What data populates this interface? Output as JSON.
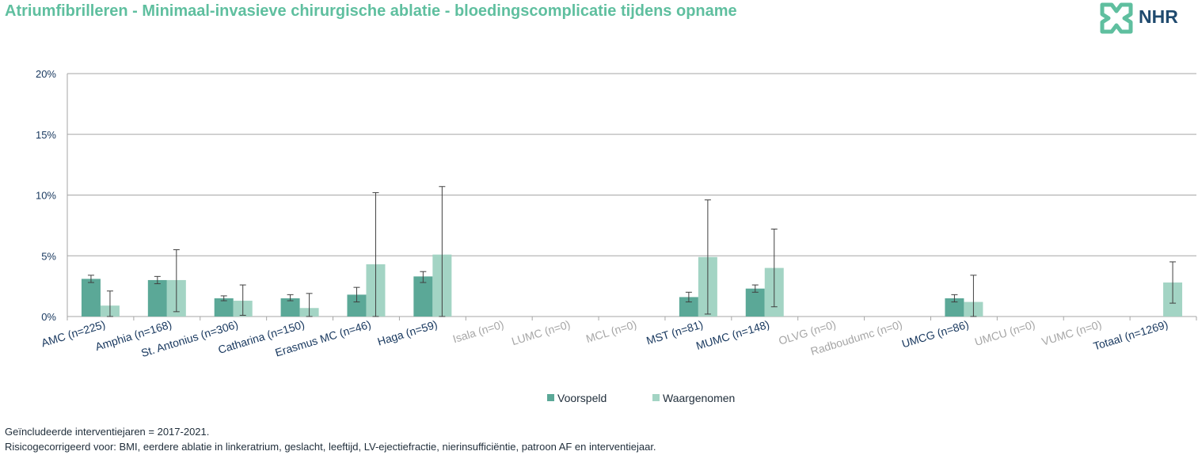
{
  "header": {
    "title": "Atriumfibrilleren - Minimaal-invasieve chirurgische ablatie - bloedingscomplicatie tijdens opname",
    "logo_text": "NHR"
  },
  "colors": {
    "title": "#5fbf9f",
    "voorspeld": "#5ba897",
    "waargenomen": "#a3d4c4",
    "active_label": "#17375e",
    "inactive_label": "#a6a6a6",
    "gridline": "#a6a6a6",
    "logo": "#5fbf9f"
  },
  "chart_data": {
    "type": "bar",
    "ylim": [
      0,
      20
    ],
    "yticks": [
      0,
      5,
      10,
      15,
      20
    ],
    "ytick_labels": [
      "0%",
      "5%",
      "10%",
      "15%",
      "20%"
    ],
    "categories": [
      "AMC (n=225)",
      "Amphia (n=168)",
      "St. Antonius (n=306)",
      "Catharina (n=150)",
      "Erasmus MC (n=46)",
      "Haga (n=59)",
      "Isala (n=0)",
      "LUMC (n=0)",
      "MCL (n=0)",
      "MST (n=81)",
      "MUMC (n=148)",
      "OLVG (n=0)",
      "Radboudumc (n=0)",
      "UMCG (n=86)",
      "UMCU (n=0)",
      "VUMC (n=0)",
      "Totaal (n=1269)"
    ],
    "category_active": [
      true,
      true,
      true,
      true,
      true,
      true,
      false,
      false,
      false,
      true,
      true,
      false,
      false,
      true,
      false,
      false,
      true
    ],
    "series": [
      {
        "name": "Voorspeld",
        "values": [
          3.1,
          3.0,
          1.5,
          1.5,
          1.8,
          3.3,
          null,
          null,
          null,
          1.6,
          2.3,
          null,
          null,
          1.5,
          null,
          null,
          null
        ],
        "err_low": [
          2.8,
          2.7,
          1.3,
          1.3,
          1.2,
          2.8,
          null,
          null,
          null,
          1.2,
          2.0,
          null,
          null,
          1.2,
          null,
          null,
          null
        ],
        "err_high": [
          3.4,
          3.3,
          1.7,
          1.8,
          2.4,
          3.7,
          null,
          null,
          null,
          2.0,
          2.6,
          null,
          null,
          1.8,
          null,
          null,
          null
        ]
      },
      {
        "name": "Waargenomen",
        "values": [
          0.9,
          3.0,
          1.3,
          0.7,
          4.3,
          5.1,
          null,
          null,
          null,
          4.9,
          4.0,
          null,
          null,
          1.2,
          null,
          null,
          2.8
        ],
        "err_low": [
          0.0,
          0.4,
          0.1,
          0.0,
          0.0,
          0.0,
          null,
          null,
          null,
          0.2,
          0.8,
          null,
          null,
          0.0,
          null,
          null,
          1.1
        ],
        "err_high": [
          2.1,
          5.5,
          2.6,
          1.9,
          10.2,
          10.7,
          null,
          null,
          null,
          9.6,
          7.2,
          null,
          null,
          3.4,
          null,
          null,
          4.5
        ]
      }
    ],
    "legend": [
      "Voorspeld",
      "Waargenomen"
    ],
    "legend_position": "bottom-center",
    "grid": true
  },
  "footnotes": {
    "line1": "Geïncludeerde interventiejaren = 2017-2021.",
    "line2": "Risicogecorrigeerd voor: BMI, eerdere ablatie in linkeratrium, geslacht, leeftijd, LV-ejectiefractie, nierinsufficiëntie, patroon AF en interventiejaar."
  }
}
